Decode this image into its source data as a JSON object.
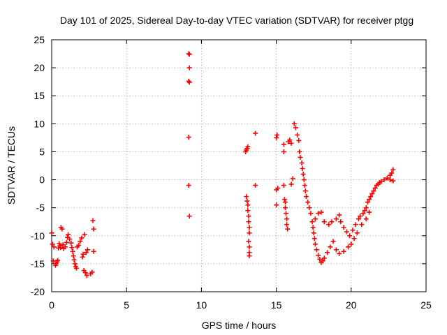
{
  "chart_data": {
    "type": "scatter",
    "title": "Day 101 of 2025, Sidereal Day-to-day VTEC variation (SDTVAR) for receiver ptgg",
    "xlabel": "GPS time / hours",
    "ylabel": "SDTVAR / TECUs",
    "xlim": [
      0,
      25
    ],
    "ylim": [
      -20,
      25
    ],
    "xticks": [
      0,
      5,
      10,
      15,
      20,
      25
    ],
    "yticks": [
      -20,
      -15,
      -10,
      -5,
      0,
      5,
      10,
      15,
      20,
      25
    ],
    "grid": true,
    "legend": "none",
    "marker": "plus",
    "series": [
      {
        "name": "SDTVAR",
        "color": "#ff0000",
        "points": [
          [
            0.0,
            -9.5
          ],
          [
            0.05,
            -11.5
          ],
          [
            0.1,
            -14.5
          ],
          [
            0.15,
            -12.0
          ],
          [
            0.25,
            -15.3
          ],
          [
            0.3,
            -15.0
          ],
          [
            0.35,
            -14.7
          ],
          [
            0.4,
            -14.4
          ],
          [
            0.45,
            -12.2
          ],
          [
            0.5,
            -11.4
          ],
          [
            0.55,
            -11.8
          ],
          [
            0.6,
            -12.1
          ],
          [
            0.62,
            -8.5
          ],
          [
            0.7,
            -8.8
          ],
          [
            0.75,
            -11.6
          ],
          [
            0.8,
            -12.3
          ],
          [
            0.9,
            -12.0
          ],
          [
            1.0,
            -11.2
          ],
          [
            1.05,
            -10.3
          ],
          [
            1.1,
            -9.8
          ],
          [
            1.2,
            -10.6
          ],
          [
            1.3,
            -11.3
          ],
          [
            1.35,
            -12.1
          ],
          [
            1.4,
            -12.8
          ],
          [
            1.45,
            -13.6
          ],
          [
            1.5,
            -14.3
          ],
          [
            1.55,
            -15.0
          ],
          [
            1.6,
            -15.5
          ],
          [
            1.65,
            -15.8
          ],
          [
            1.7,
            -12.0
          ],
          [
            1.8,
            -11.7
          ],
          [
            1.9,
            -11.0
          ],
          [
            2.0,
            -10.4
          ],
          [
            2.05,
            -13.8
          ],
          [
            2.1,
            -13.3
          ],
          [
            2.15,
            -16.2
          ],
          [
            2.2,
            -9.8
          ],
          [
            2.25,
            -16.6
          ],
          [
            2.3,
            -13.0
          ],
          [
            2.35,
            -17.1
          ],
          [
            2.4,
            -12.5
          ],
          [
            2.6,
            -16.8
          ],
          [
            2.7,
            -16.5
          ],
          [
            2.75,
            -7.3
          ],
          [
            2.8,
            -8.8
          ],
          [
            2.8,
            -12.8
          ],
          [
            9.15,
            22.5
          ],
          [
            9.2,
            22.4
          ],
          [
            9.2,
            20.0
          ],
          [
            9.15,
            17.6
          ],
          [
            9.2,
            17.4
          ],
          [
            9.15,
            7.6
          ],
          [
            9.15,
            -1.0
          ],
          [
            9.2,
            -6.5
          ],
          [
            12.95,
            5.0
          ],
          [
            13.0,
            5.3
          ],
          [
            13.05,
            5.6
          ],
          [
            13.1,
            5.9
          ],
          [
            13.0,
            -3.0
          ],
          [
            13.05,
            -3.8
          ],
          [
            13.1,
            -4.5
          ],
          [
            13.1,
            -5.5
          ],
          [
            13.15,
            -6.5
          ],
          [
            13.15,
            -7.5
          ],
          [
            13.2,
            -8.5
          ],
          [
            13.2,
            -9.5
          ],
          [
            13.15,
            -11.0
          ],
          [
            13.2,
            -12.0
          ],
          [
            13.2,
            -13.0
          ],
          [
            13.2,
            -13.6
          ],
          [
            13.6,
            8.3
          ],
          [
            13.6,
            -1.0
          ],
          [
            15.0,
            7.5
          ],
          [
            15.05,
            8.0
          ],
          [
            15.0,
            -1.8
          ],
          [
            15.1,
            -1.5
          ],
          [
            15.0,
            -4.5
          ],
          [
            15.5,
            5.0
          ],
          [
            15.5,
            6.3
          ],
          [
            15.5,
            -1.0
          ],
          [
            15.55,
            -3.5
          ],
          [
            15.6,
            -4.0
          ],
          [
            15.6,
            -5.0
          ],
          [
            15.65,
            -6.0
          ],
          [
            15.7,
            -7.0
          ],
          [
            15.7,
            -8.0
          ],
          [
            15.75,
            -8.8
          ],
          [
            15.8,
            6.8
          ],
          [
            15.9,
            7.1
          ],
          [
            16.0,
            6.5
          ],
          [
            16.0,
            -0.8
          ],
          [
            16.1,
            0.2
          ],
          [
            16.2,
            10.0
          ],
          [
            16.3,
            9.3
          ],
          [
            16.4,
            8.0
          ],
          [
            16.5,
            7.0
          ],
          [
            16.55,
            5.0
          ],
          [
            16.6,
            4.0
          ],
          [
            16.7,
            3.0
          ],
          [
            16.75,
            2.0
          ],
          [
            16.8,
            1.0
          ],
          [
            16.85,
            0.0
          ],
          [
            16.9,
            -1.0
          ],
          [
            16.95,
            -2.0
          ],
          [
            17.0,
            -3.0
          ],
          [
            17.1,
            -4.0
          ],
          [
            17.2,
            -5.0
          ],
          [
            17.3,
            -6.0
          ],
          [
            17.4,
            -7.5
          ],
          [
            17.45,
            -8.5
          ],
          [
            17.5,
            -9.5
          ],
          [
            17.55,
            -10.5
          ],
          [
            17.6,
            -11.5
          ],
          [
            17.7,
            -12.5
          ],
          [
            17.8,
            -13.5
          ],
          [
            17.9,
            -14.2
          ],
          [
            18.0,
            -14.8
          ],
          [
            18.1,
            -14.5
          ],
          [
            18.2,
            -14.0
          ],
          [
            18.4,
            -13.0
          ],
          [
            18.6,
            -12.0
          ],
          [
            18.8,
            -11.0
          ],
          [
            19.0,
            -12.5
          ],
          [
            19.2,
            -13.2
          ],
          [
            19.5,
            -12.8
          ],
          [
            19.8,
            -12.0
          ],
          [
            20.0,
            -11.5
          ],
          [
            20.2,
            -10.5
          ],
          [
            20.4,
            -9.5
          ],
          [
            17.6,
            -7.0
          ],
          [
            17.8,
            -6.0
          ],
          [
            18.0,
            -5.8
          ],
          [
            18.2,
            -7.5
          ],
          [
            18.5,
            -8.0
          ],
          [
            18.7,
            -7.5
          ],
          [
            19.0,
            -7.0
          ],
          [
            19.2,
            -6.3
          ],
          [
            19.3,
            -7.5
          ],
          [
            19.5,
            -8.5
          ],
          [
            19.7,
            -9.3
          ],
          [
            19.9,
            -10.0
          ],
          [
            20.1,
            -9.0
          ],
          [
            20.3,
            -8.0
          ],
          [
            20.5,
            -7.0
          ],
          [
            20.6,
            -6.5
          ],
          [
            20.7,
            -8.0
          ],
          [
            20.8,
            -6.0
          ],
          [
            20.9,
            -5.5
          ],
          [
            21.0,
            -5.0
          ],
          [
            21.1,
            -4.0
          ],
          [
            21.2,
            -3.5
          ],
          [
            21.3,
            -3.0
          ],
          [
            21.4,
            -2.5
          ],
          [
            21.5,
            -2.0
          ],
          [
            21.6,
            -1.5
          ],
          [
            21.7,
            -1.0
          ],
          [
            21.8,
            -0.8
          ],
          [
            21.9,
            -0.5
          ],
          [
            22.0,
            -0.3
          ],
          [
            22.2,
            0.0
          ],
          [
            22.4,
            0.3
          ],
          [
            22.6,
            0.8
          ],
          [
            22.7,
            1.2
          ],
          [
            22.8,
            1.8
          ],
          [
            22.6,
            0.0
          ],
          [
            22.8,
            -0.2
          ],
          [
            21.2,
            -5.8
          ],
          [
            21.0,
            -7.0
          ]
        ]
      }
    ]
  }
}
